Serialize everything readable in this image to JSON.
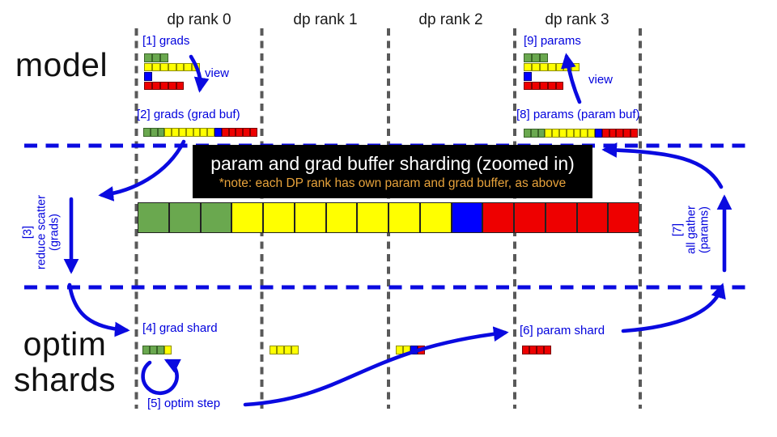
{
  "colors": {
    "green": "#6aa84f",
    "yellow": "#ffff00",
    "blue": "#0000ff",
    "red": "#ee0000",
    "arrow_blue": "#0a0ae0",
    "text_blue": "#0000dd",
    "note_orange": "#e8a33b",
    "grid_gray": "#595959",
    "borders": {
      "green": "#3a6428",
      "yellow": "#8f8f00",
      "blue": "#000080",
      "red": "#7a0000"
    }
  },
  "headers": [
    "dp rank 0",
    "dp rank 1",
    "dp rank 2",
    "dp rank 3"
  ],
  "sections": {
    "model": "model",
    "optim_line1": "optim",
    "optim_line2": "shards"
  },
  "banner": {
    "title": "param and grad buffer sharding (zoomed in)",
    "note": "*note: each DP rank has own param and grad buffer, as above"
  },
  "rank0_model": {
    "grads_label": "[1] grads",
    "view_label": "view",
    "gradbuf_label": "[2] grads (grad buf)"
  },
  "rank3_model": {
    "params_label": "[9] params",
    "view_label": "view",
    "parambuf_label": "[8] params (param buf)"
  },
  "left_flow": {
    "line1": "[3]",
    "line2": "reduce scatter",
    "line3": "(grads)"
  },
  "right_flow": {
    "line1": "[7]",
    "line2": "all gather",
    "line3": "(params)"
  },
  "bottom": {
    "grad_shard_label": "[4] grad shard",
    "optim_step_label": "[5] optim step",
    "param_shard_label": "[6] param shard"
  },
  "strips": {
    "param_rows": [
      {
        "color": "green",
        "cells": 3
      },
      {
        "color": "yellow",
        "cells": 7
      },
      {
        "color": "blue",
        "cells": 1
      },
      {
        "color": "red",
        "cells": 5
      }
    ],
    "buffer": [
      {
        "color": "green",
        "cells": 3
      },
      {
        "color": "yellow",
        "cells": 7
      },
      {
        "color": "blue",
        "cells": 1
      },
      {
        "color": "red",
        "cells": 5
      }
    ],
    "big_bar": [
      {
        "color": "green",
        "cells": 3
      },
      {
        "color": "yellow",
        "cells": 7
      },
      {
        "color": "blue",
        "cells": 1
      },
      {
        "color": "red",
        "cells": 5
      }
    ],
    "shards": {
      "rank0": [
        {
          "color": "green",
          "cells": 3
        },
        {
          "color": "yellow",
          "cells": 1
        }
      ],
      "rank1": [
        {
          "color": "yellow",
          "cells": 4
        }
      ],
      "rank2": [
        {
          "color": "yellow",
          "cells": 2
        },
        {
          "color": "blue",
          "cells": 1
        },
        {
          "color": "red",
          "cells": 1
        }
      ],
      "rank3": [
        {
          "color": "red",
          "cells": 4
        }
      ]
    }
  }
}
